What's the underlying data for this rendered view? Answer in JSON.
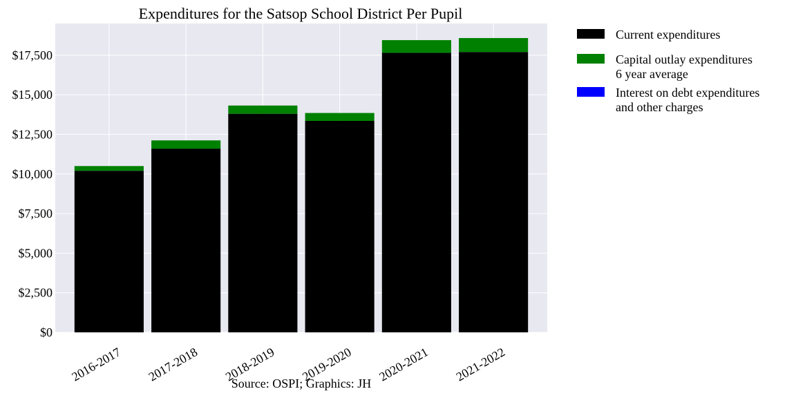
{
  "chart_data": {
    "type": "bar",
    "stacked": true,
    "title": "Expenditures for the Satsop School District Per Pupil",
    "caption": "Source: OSPI; Graphics: JH",
    "categories": [
      "2016-2017",
      "2017-2018",
      "2018-2019",
      "2019-2020",
      "2020-2021",
      "2021-2022"
    ],
    "series": [
      {
        "name": "Current expenditures",
        "color": "#000000",
        "values": [
          10200,
          11600,
          13800,
          13350,
          17650,
          17700
        ]
      },
      {
        "name": "Capital outlay expenditures\n6 year average",
        "color": "#008000",
        "values": [
          300,
          520,
          520,
          500,
          800,
          880
        ]
      },
      {
        "name": "Interest on debt expenditures\nand other charges",
        "color": "#0000ff",
        "values": [
          0,
          0,
          0,
          0,
          0,
          0
        ]
      }
    ],
    "ylim": [
      0,
      19500
    ],
    "yticks": [
      0,
      2500,
      5000,
      7500,
      10000,
      12500,
      15000,
      17500
    ],
    "ytick_labels": [
      "$0",
      "$2,500",
      "$5,000",
      "$7,500",
      "$10,000",
      "$12,500",
      "$15,000",
      "$17,500"
    ],
    "grid": true,
    "legend_position": "outside-right"
  }
}
